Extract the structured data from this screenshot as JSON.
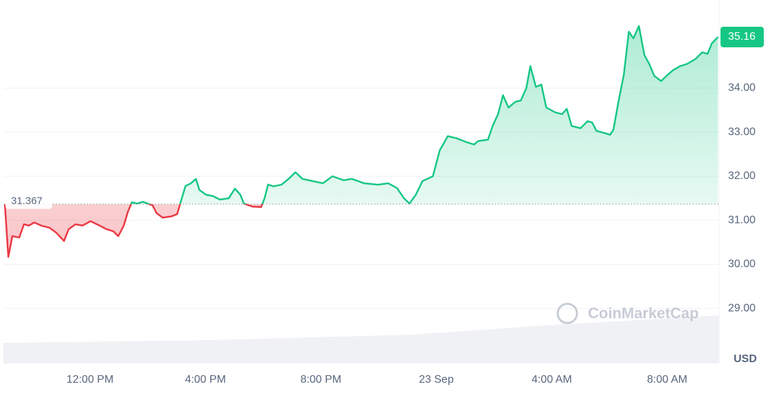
{
  "chart_data": {
    "type": "line",
    "x": [
      0.05,
      0.17,
      0.31,
      0.55,
      0.71,
      0.88,
      1.07,
      1.31,
      1.6,
      1.83,
      2.1,
      2.26,
      2.5,
      2.74,
      3.02,
      3.33,
      3.57,
      3.81,
      3.98,
      4.17,
      4.31,
      4.45,
      4.64,
      4.83,
      5.0,
      5.17,
      5.31,
      5.52,
      5.83,
      6.02,
      6.14,
      6.31,
      6.5,
      6.67,
      6.79,
      7.02,
      7.26,
      7.5,
      7.81,
      8.02,
      8.21,
      8.33,
      8.64,
      8.93,
      9.05,
      9.17,
      9.36,
      9.64,
      9.88,
      10.12,
      10.36,
      10.71,
      11.07,
      11.4,
      11.79,
      12.07,
      12.5,
      12.98,
      13.33,
      13.64,
      13.88,
      14.07,
      14.29,
      14.52,
      14.88,
      15.12,
      15.4,
      15.71,
      16.02,
      16.31,
      16.45,
      16.79,
      16.95,
      17.14,
      17.31,
      17.5,
      17.74,
      17.93,
      18.12,
      18.26,
      18.45,
      18.64,
      18.81,
      19.12,
      19.36,
      19.52,
      19.69,
      20.0,
      20.24,
      20.4,
      20.55,
      20.83,
      21.02,
      21.14,
      21.31,
      21.5,
      21.67,
      21.83,
      22.02,
      22.21,
      22.38,
      22.55,
      22.79,
      22.98,
      23.21,
      23.45,
      23.69,
      23.98,
      24.21,
      24.4,
      24.55,
      24.76
    ],
    "values": [
      31.36,
      30.17,
      30.64,
      30.61,
      30.91,
      30.88,
      30.95,
      30.88,
      30.83,
      30.72,
      30.53,
      30.8,
      30.91,
      30.88,
      30.98,
      30.88,
      30.8,
      30.75,
      30.64,
      30.88,
      31.19,
      31.41,
      31.38,
      31.42,
      31.38,
      31.34,
      31.16,
      31.06,
      31.09,
      31.14,
      31.41,
      31.78,
      31.84,
      31.94,
      31.69,
      31.58,
      31.55,
      31.47,
      31.5,
      31.72,
      31.58,
      31.38,
      31.31,
      31.3,
      31.5,
      31.81,
      31.77,
      31.81,
      31.94,
      32.09,
      31.94,
      31.89,
      31.84,
      32.0,
      31.91,
      31.94,
      31.84,
      31.81,
      31.84,
      31.73,
      31.5,
      31.38,
      31.58,
      31.89,
      32.0,
      32.59,
      32.91,
      32.86,
      32.78,
      32.72,
      32.8,
      32.83,
      33.14,
      33.41,
      33.84,
      33.56,
      33.69,
      33.72,
      34.0,
      34.5,
      34.03,
      34.08,
      33.56,
      33.45,
      33.41,
      33.53,
      33.14,
      33.09,
      33.25,
      33.22,
      33.03,
      32.98,
      32.94,
      33.06,
      33.69,
      34.31,
      35.28,
      35.13,
      35.41,
      34.75,
      34.55,
      34.28,
      34.16,
      34.28,
      34.41,
      34.5,
      34.55,
      34.66,
      34.81,
      34.78,
      35.02,
      35.16
    ],
    "baseline": 31.367,
    "last_price": 35.16,
    "up_color": "#16c784",
    "down_color": "#ea3943",
    "xlim": [
      0,
      24.8
    ],
    "xticks": [
      {
        "value": 3,
        "label": "12:00 PM"
      },
      {
        "value": 7,
        "label": "4:00 PM"
      },
      {
        "value": 11,
        "label": "8:00 PM"
      },
      {
        "value": 15,
        "label": "23 Sep"
      },
      {
        "value": 19,
        "label": "4:00 AM"
      },
      {
        "value": 23,
        "label": "8:00 AM"
      }
    ],
    "ylim": [
      27.75,
      36.0
    ],
    "yticks": [
      {
        "value": 29,
        "label": "29.00"
      },
      {
        "value": 30,
        "label": "30.00"
      },
      {
        "value": 31,
        "label": "31.00"
      },
      {
        "value": 32,
        "label": "32.00"
      },
      {
        "value": 33,
        "label": "33.00"
      },
      {
        "value": 34,
        "label": "34.00"
      }
    ],
    "y_unit": "USD",
    "watermark": "CoinMarketCap",
    "grid": true
  }
}
